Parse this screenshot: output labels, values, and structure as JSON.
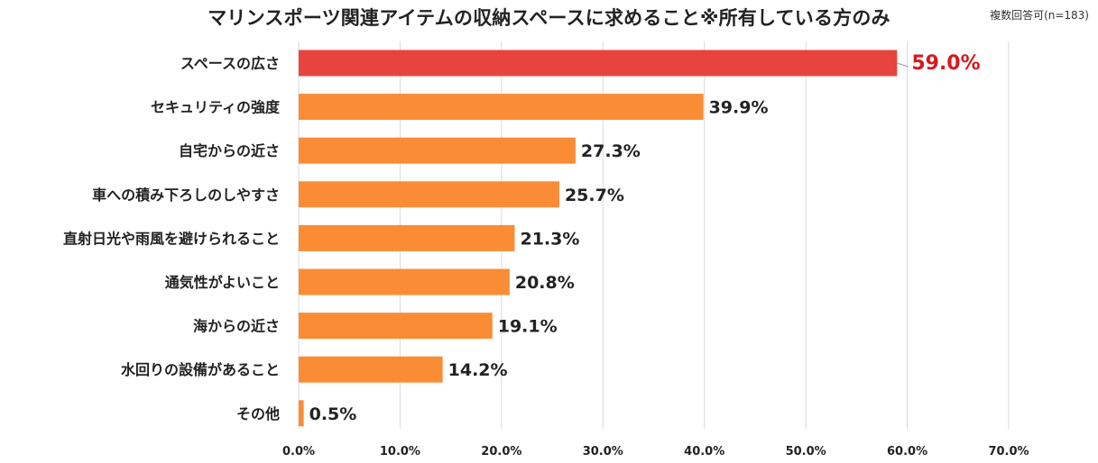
{
  "title": "マリンスポーツ関連アイテムの収納スペースに求めること※所有している方のみ",
  "note": "複数回答可(n=183)",
  "colors": {
    "bar": "#fb8c36",
    "highlight_bar": "#e8443f",
    "highlight_label": "#d7191c"
  },
  "chart_data": {
    "type": "bar",
    "orientation": "horizontal",
    "title": "マリンスポーツ関連アイテムの収納スペースに求めること※所有している方のみ",
    "categories": [
      "スペースの広さ",
      "セキュリティの強度",
      "自宅からの近さ",
      "車への積み下ろしのしやすさ",
      "直射日光や雨風を避けられること",
      "通気性がよいこと",
      "海からの近さ",
      "水回りの設備があること",
      "その他"
    ],
    "values": [
      59.0,
      39.9,
      27.3,
      25.7,
      21.3,
      20.8,
      19.1,
      14.2,
      0.5
    ],
    "value_labels": [
      "59.0%",
      "39.9%",
      "27.3%",
      "25.7%",
      "21.3%",
      "20.8%",
      "19.1%",
      "14.2%",
      "0.5%"
    ],
    "highlight_index": 0,
    "xlim": [
      0,
      70
    ],
    "xticks": [
      "0.0%",
      "10.0%",
      "20.0%",
      "30.0%",
      "40.0%",
      "50.0%",
      "60.0%",
      "70.0%"
    ],
    "grid": true,
    "xlabel": "",
    "ylabel": ""
  }
}
